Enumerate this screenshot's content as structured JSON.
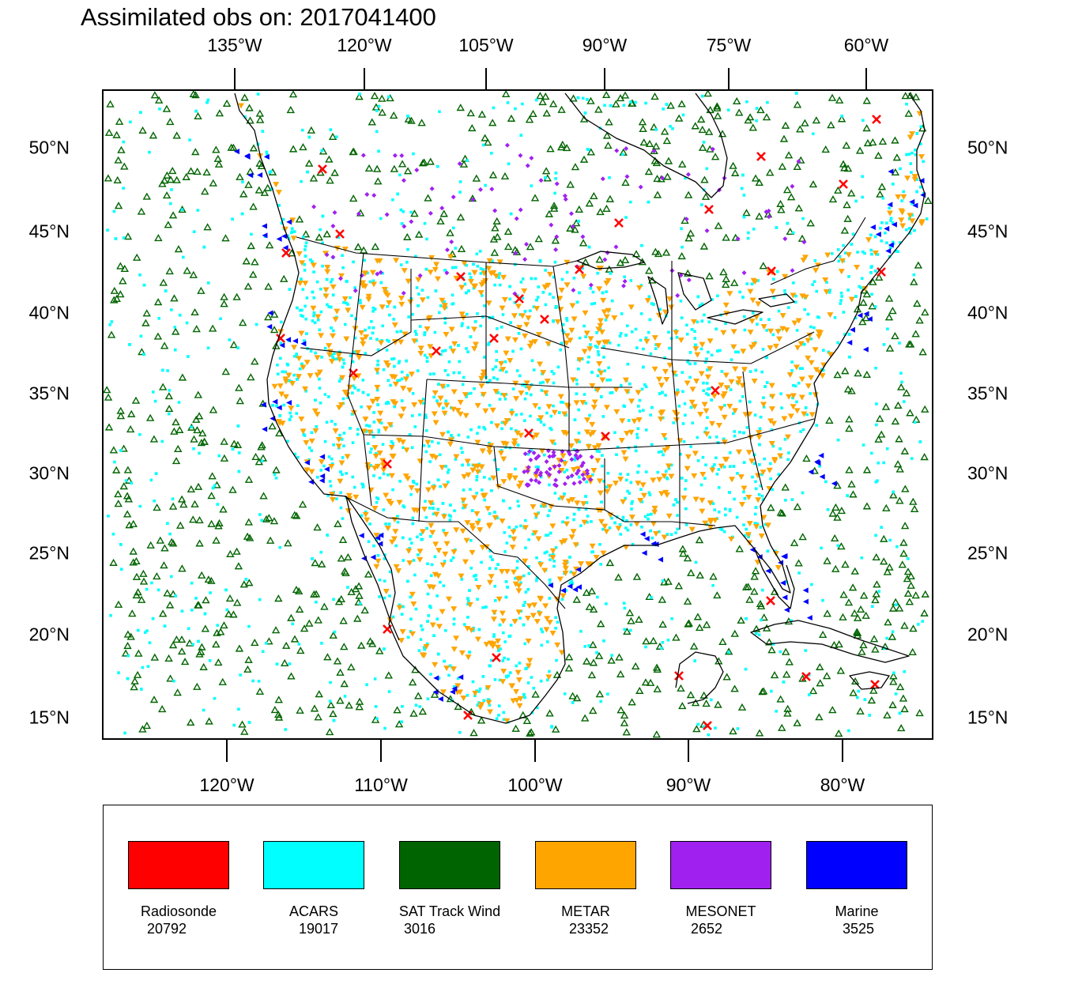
{
  "title": "Assimilated obs on: 2017041400",
  "top_longitudes": [
    "135°W",
    "120°W",
    "105°W",
    "90°W",
    "75°W",
    "60°W"
  ],
  "bottom_longitudes": [
    "120°W",
    "110°W",
    "100°W",
    "90°W",
    "80°W"
  ],
  "latitudes": [
    "50°N",
    "45°N",
    "40°N",
    "35°N",
    "30°N",
    "25°N",
    "20°N",
    "15°N"
  ],
  "legend": [
    {
      "name": "Radiosonde",
      "count": "20792",
      "color": "#ff0000",
      "icon": "x-marker-icon"
    },
    {
      "name": "ACARS",
      "count": "19017",
      "color": "#00ffff",
      "icon": "dot-marker-icon"
    },
    {
      "name": "SAT Track Wind",
      "count": "3016",
      "color": "#006400",
      "icon": "triangle-up-icon"
    },
    {
      "name": "METAR",
      "count": "23352",
      "color": "#ffa500",
      "icon": "triangle-down-icon"
    },
    {
      "name": "MESONET",
      "count": "2652",
      "color": "#a020f0",
      "icon": "diamond-icon"
    },
    {
      "name": "Marine",
      "count": "3525",
      "color": "#0000ff",
      "icon": "triangle-left-icon"
    }
  ]
}
